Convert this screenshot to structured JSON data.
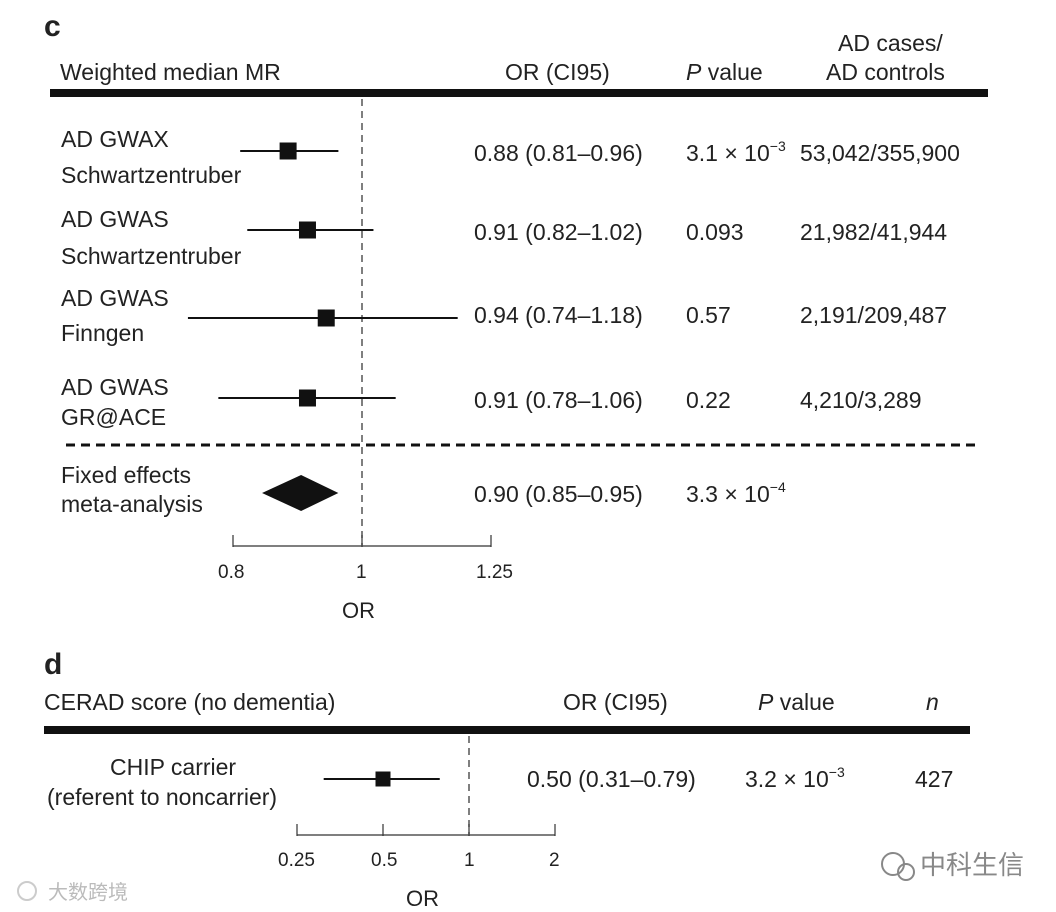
{
  "chart_data": [
    {
      "type": "forest",
      "panel": "c",
      "title": "Weighted median MR",
      "columns": {
        "or": "OR (CI95)",
        "p_prefix": "P",
        "p_suffix": " value",
        "cases_line1": "AD cases/",
        "cases_line2": "AD controls"
      },
      "xlabel": "OR",
      "xlim": [
        0.8,
        1.25
      ],
      "xticks": [
        0.8,
        1,
        1.25
      ],
      "xtick_labels": [
        "0.8",
        "1",
        "1.25"
      ],
      "reference": 1,
      "rows": [
        {
          "line1": "AD GWAX",
          "line2": "Schwartzentruber",
          "or": 0.88,
          "lo": 0.81,
          "hi": 0.96,
          "or_text": "0.88 (0.81–0.96)",
          "p_base": "3.1 × 10",
          "p_exp": "−3",
          "cases": "53,042/355,900"
        },
        {
          "line1": "AD GWAS",
          "line2": "Schwartzentruber",
          "or": 0.91,
          "lo": 0.82,
          "hi": 1.02,
          "or_text": "0.91 (0.82–1.02)",
          "p_base": "0.093",
          "p_exp": "",
          "cases": "21,982/41,944"
        },
        {
          "line1": "AD GWAS",
          "line2": "Finngen",
          "or": 0.94,
          "lo": 0.74,
          "hi": 1.18,
          "or_text": "0.94 (0.74–1.18)",
          "p_base": "0.57",
          "p_exp": "",
          "cases": "2,191/209,487"
        },
        {
          "line1": "AD GWAS",
          "line2": "GR@ACE",
          "or": 0.91,
          "lo": 0.78,
          "hi": 1.06,
          "or_text": "0.91 (0.78–1.06)",
          "p_base": "0.22",
          "p_exp": "",
          "cases": "4,210/3,289"
        }
      ],
      "summary": {
        "line1": "Fixed effects",
        "line2": "meta-analysis",
        "or": 0.9,
        "lo": 0.85,
        "hi": 0.95,
        "or_text": "0.90 (0.85–0.95)",
        "p_base": "3.3 × 10",
        "p_exp": "−4"
      }
    },
    {
      "type": "forest",
      "panel": "d",
      "title": "CERAD score (no dementia)",
      "columns": {
        "or": "OR (CI95)",
        "p_prefix": "P",
        "p_suffix": " value",
        "n": "n"
      },
      "xlabel": "OR",
      "xlim": [
        0.25,
        2
      ],
      "xticks": [
        0.25,
        0.5,
        1,
        2
      ],
      "xtick_labels": [
        "0.25",
        "0.5",
        "1",
        "2"
      ],
      "reference": 1,
      "rows": [
        {
          "line1": "CHIP carrier",
          "line2": "(referent to noncarrier)",
          "or": 0.5,
          "lo": 0.31,
          "hi": 0.79,
          "or_text": "0.50 (0.31–0.79)",
          "p_base": "3.2 × 10",
          "p_exp": "−3",
          "n": "427"
        }
      ]
    }
  ],
  "watermarks": {
    "left": "大数跨境",
    "right": "中科生信"
  }
}
